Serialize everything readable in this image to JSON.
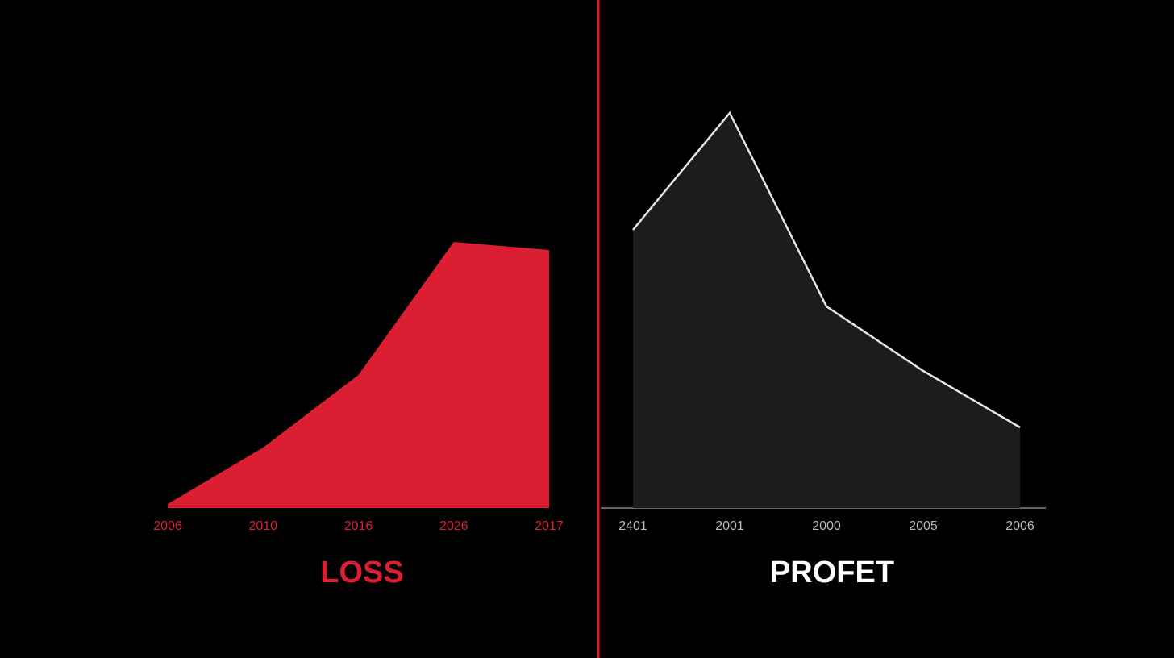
{
  "chart_data": [
    {
      "type": "area",
      "title": "LOSS",
      "categories": [
        "2006",
        "2010",
        "2016",
        "2026",
        "2017"
      ],
      "series": [
        {
          "color": "#dc1e32",
          "values": [
            5,
            75,
            165,
            330,
            320
          ]
        }
      ],
      "ylim": [
        0,
        550
      ]
    },
    {
      "type": "area",
      "title": "PROFET",
      "categories": [
        "2401",
        "2001",
        "2000",
        "2005",
        "2006"
      ],
      "series": [
        {
          "color": "#1c1c1c",
          "line_color": "#e6e6e6",
          "values": [
            345,
            490,
            250,
            170,
            100
          ]
        }
      ],
      "ylim": [
        0,
        550
      ]
    }
  ]
}
